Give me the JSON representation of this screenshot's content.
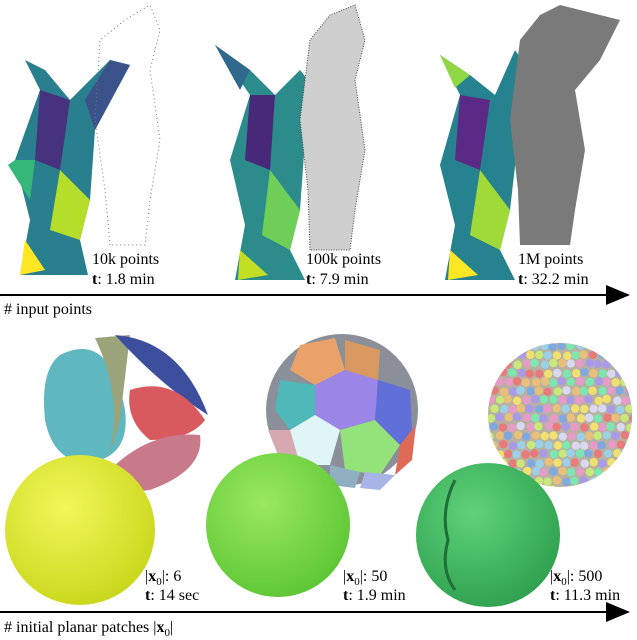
{
  "top_row": {
    "items": [
      {
        "points": "10k points",
        "time_symbol": "t",
        "time": ": 1.8 min"
      },
      {
        "points": "100k points",
        "time_symbol": "t",
        "time": ": 7.9 min"
      },
      {
        "points": "1M points",
        "time_symbol": "t",
        "time": ": 32.2 min"
      }
    ],
    "axis_label": "# input points"
  },
  "bottom_row": {
    "items": [
      {
        "count_open": "|",
        "count_symbol": "x",
        "count_subscript": "0",
        "count": "|: 6",
        "time_symbol": "t",
        "time": ": 14 sec"
      },
      {
        "count_open": "|",
        "count_symbol": "x",
        "count_subscript": "0",
        "count": "|: 50",
        "time_symbol": "t",
        "time": ": 1.9 min"
      },
      {
        "count_open": "|",
        "count_symbol": "x",
        "count_subscript": "0",
        "count": "|: 500",
        "time_symbol": "t",
        "time": ": 11.3 min"
      }
    ],
    "axis_label": "# initial planar patches ",
    "axis_open": "|",
    "axis_symbol": "x",
    "axis_subscript": "0",
    "axis_close": "|"
  }
}
